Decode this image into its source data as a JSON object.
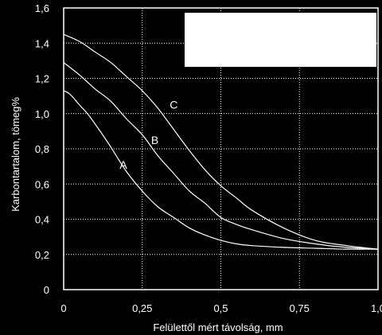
{
  "chart_data": {
    "type": "line",
    "title": "",
    "xlabel": "Felülettől mért távolság, mm",
    "ylabel": "Karbontartalom, tömeg%",
    "xlim": [
      0,
      1.0
    ],
    "ylim": [
      0,
      1.6
    ],
    "x_ticks": [
      0,
      0.25,
      0.5,
      0.75,
      1.0
    ],
    "x_tick_labels": [
      "0",
      "0,25",
      "0,5",
      "0,75",
      "1,0"
    ],
    "y_ticks": [
      0,
      0.2,
      0.4,
      0.6,
      0.8,
      1.0,
      1.2,
      1.4,
      1.6
    ],
    "y_tick_labels": [
      "0",
      "0,2",
      "0,4",
      "0,6",
      "0,8",
      "1,0",
      "1,2",
      "1,4",
      "1,6"
    ],
    "grid": true,
    "colors": {
      "background": "#000000",
      "line": "#ffffff",
      "grid": "#ffffff",
      "legend_box": "#ffffff"
    },
    "legend_box": "top-right",
    "series": [
      {
        "name": "A",
        "label_at": [
          0.19,
          0.71
        ],
        "x": [
          0,
          0.02,
          0.05,
          0.08,
          0.12,
          0.15,
          0.2,
          0.25,
          0.3,
          0.35,
          0.4,
          0.45,
          0.5,
          0.55,
          0.6,
          0.7,
          0.8,
          0.9,
          1.0
        ],
        "y": [
          1.13,
          1.11,
          1.05,
          0.99,
          0.89,
          0.81,
          0.67,
          0.56,
          0.47,
          0.41,
          0.35,
          0.31,
          0.28,
          0.26,
          0.25,
          0.24,
          0.235,
          0.23,
          0.23
        ]
      },
      {
        "name": "B",
        "label_at": [
          0.29,
          0.85
        ],
        "x": [
          0,
          0.05,
          0.1,
          0.15,
          0.2,
          0.25,
          0.3,
          0.35,
          0.4,
          0.45,
          0.5,
          0.55,
          0.6,
          0.7,
          0.8,
          0.9,
          1.0
        ],
        "y": [
          1.29,
          1.22,
          1.14,
          1.07,
          0.97,
          0.88,
          0.76,
          0.66,
          0.56,
          0.49,
          0.41,
          0.37,
          0.34,
          0.29,
          0.26,
          0.24,
          0.23
        ]
      },
      {
        "name": "C",
        "label_at": [
          0.35,
          1.05
        ],
        "x": [
          0,
          0.05,
          0.1,
          0.15,
          0.2,
          0.25,
          0.3,
          0.35,
          0.4,
          0.45,
          0.5,
          0.55,
          0.6,
          0.7,
          0.8,
          0.9,
          1.0
        ],
        "y": [
          1.45,
          1.41,
          1.35,
          1.29,
          1.21,
          1.13,
          1.03,
          0.91,
          0.79,
          0.68,
          0.59,
          0.52,
          0.45,
          0.35,
          0.28,
          0.25,
          0.23
        ]
      }
    ]
  }
}
